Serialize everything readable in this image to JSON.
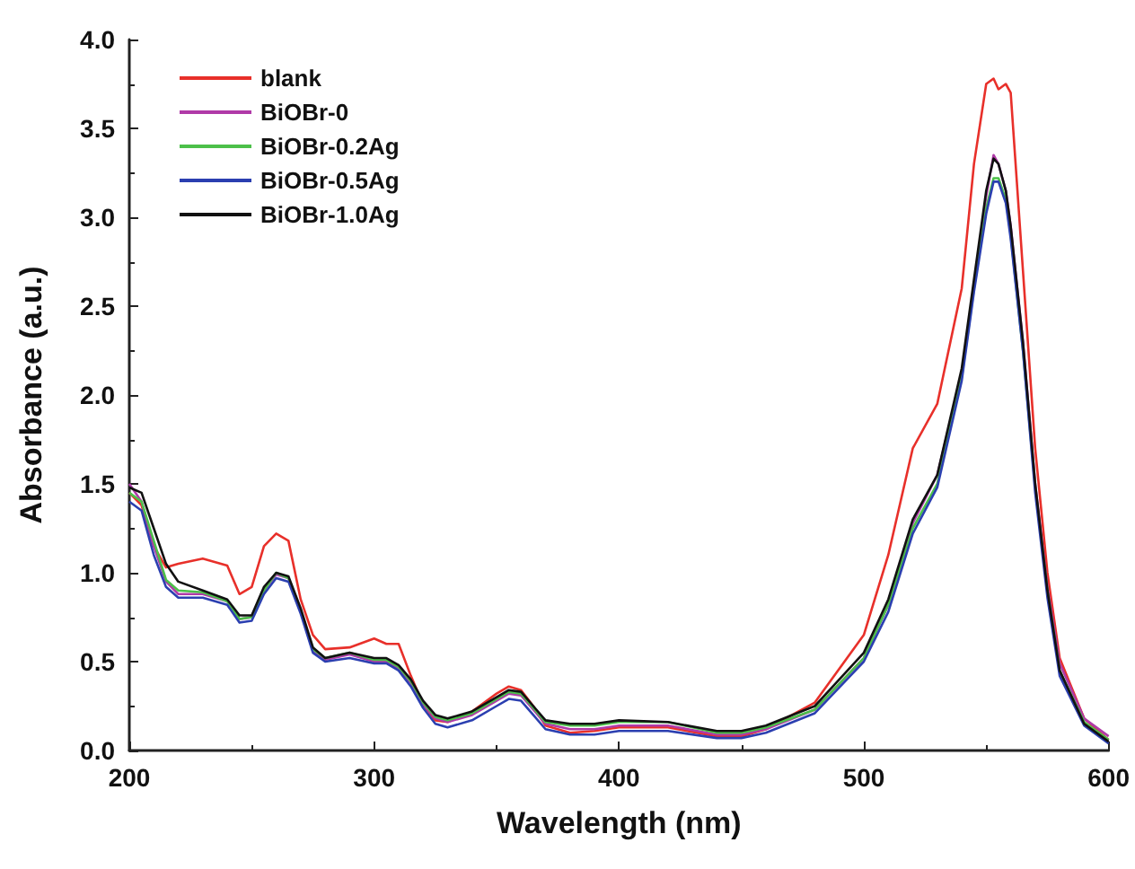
{
  "chart_data": {
    "type": "line",
    "xlabel": "Wavelength (nm)",
    "ylabel": "Absorbance (a.u.)",
    "x": [
      200,
      205,
      210,
      215,
      220,
      230,
      240,
      245,
      250,
      255,
      260,
      265,
      270,
      275,
      280,
      290,
      300,
      305,
      310,
      315,
      320,
      325,
      330,
      340,
      350,
      355,
      360,
      365,
      370,
      380,
      390,
      400,
      420,
      440,
      450,
      460,
      480,
      500,
      510,
      520,
      530,
      540,
      545,
      550,
      553,
      555,
      558,
      560,
      565,
      570,
      575,
      580,
      590,
      600
    ],
    "xlim": [
      200,
      600
    ],
    "xticks": [
      200,
      300,
      400,
      500,
      600
    ],
    "ylim": [
      0,
      4
    ],
    "yticks": [
      {
        "value": 0,
        "label": "0.0"
      },
      0.5,
      {
        "value": 1,
        "label": "1.0"
      },
      1.5,
      {
        "value": 2,
        "label": "2.0"
      },
      2.5,
      {
        "value": 3,
        "label": "3.0"
      },
      3.5,
      {
        "value": 4,
        "label": "4.0"
      }
    ],
    "legend": "top left",
    "grid": false,
    "line_style": "solid",
    "marker": "none",
    "series": [
      {
        "name": "blank",
        "color": "#e8302a",
        "values": [
          1.45,
          1.38,
          1.15,
          1.03,
          1.05,
          1.08,
          1.04,
          0.88,
          0.92,
          1.15,
          1.22,
          1.18,
          0.85,
          0.65,
          0.57,
          0.58,
          0.63,
          0.6,
          0.6,
          0.42,
          0.26,
          0.17,
          0.16,
          0.22,
          0.32,
          0.36,
          0.34,
          0.25,
          0.14,
          0.1,
          0.11,
          0.13,
          0.13,
          0.08,
          0.08,
          0.12,
          0.27,
          0.65,
          1.1,
          1.7,
          1.95,
          2.6,
          3.3,
          3.75,
          3.78,
          3.72,
          3.75,
          3.7,
          2.7,
          1.7,
          1.0,
          0.52,
          0.18,
          0.06
        ]
      },
      {
        "name": "BiOBr-0",
        "color": "#b03aa8",
        "values": [
          1.5,
          1.4,
          1.15,
          0.95,
          0.88,
          0.88,
          0.84,
          0.74,
          0.75,
          0.9,
          0.99,
          0.97,
          0.78,
          0.56,
          0.51,
          0.54,
          0.5,
          0.5,
          0.46,
          0.38,
          0.26,
          0.18,
          0.16,
          0.2,
          0.28,
          0.32,
          0.31,
          0.23,
          0.15,
          0.12,
          0.12,
          0.14,
          0.14,
          0.09,
          0.09,
          0.12,
          0.23,
          0.52,
          0.82,
          1.28,
          1.55,
          2.12,
          2.62,
          3.12,
          3.35,
          3.3,
          3.15,
          2.95,
          2.3,
          1.5,
          0.92,
          0.49,
          0.18,
          0.08
        ]
      },
      {
        "name": "BiOBr-0.2Ag",
        "color": "#4cc04a",
        "values": [
          1.45,
          1.4,
          1.18,
          0.96,
          0.9,
          0.89,
          0.84,
          0.74,
          0.75,
          0.9,
          1.0,
          0.97,
          0.79,
          0.57,
          0.52,
          0.55,
          0.51,
          0.51,
          0.47,
          0.39,
          0.27,
          0.19,
          0.17,
          0.21,
          0.29,
          0.33,
          0.32,
          0.24,
          0.16,
          0.14,
          0.14,
          0.16,
          0.16,
          0.1,
          0.1,
          0.13,
          0.23,
          0.52,
          0.82,
          1.25,
          1.5,
          2.1,
          2.6,
          3.05,
          3.22,
          3.22,
          3.1,
          2.9,
          2.25,
          1.48,
          0.9,
          0.45,
          0.16,
          0.06
        ]
      },
      {
        "name": "BiOBr-0.5Ag",
        "color": "#2b3fb0",
        "values": [
          1.4,
          1.35,
          1.1,
          0.92,
          0.86,
          0.86,
          0.82,
          0.72,
          0.73,
          0.88,
          0.97,
          0.95,
          0.77,
          0.55,
          0.5,
          0.52,
          0.49,
          0.49,
          0.45,
          0.36,
          0.24,
          0.15,
          0.13,
          0.17,
          0.25,
          0.29,
          0.28,
          0.2,
          0.12,
          0.09,
          0.09,
          0.11,
          0.11,
          0.07,
          0.07,
          0.1,
          0.21,
          0.5,
          0.78,
          1.22,
          1.48,
          2.08,
          2.58,
          3.02,
          3.2,
          3.2,
          3.08,
          2.88,
          2.25,
          1.45,
          0.86,
          0.42,
          0.14,
          0.04
        ]
      },
      {
        "name": "BiOBr-1.0Ag",
        "color": "#111111",
        "values": [
          1.48,
          1.45,
          1.25,
          1.05,
          0.95,
          0.9,
          0.85,
          0.76,
          0.76,
          0.92,
          1.0,
          0.98,
          0.8,
          0.58,
          0.52,
          0.55,
          0.52,
          0.52,
          0.48,
          0.4,
          0.28,
          0.2,
          0.18,
          0.22,
          0.3,
          0.34,
          0.33,
          0.25,
          0.17,
          0.15,
          0.15,
          0.17,
          0.16,
          0.11,
          0.11,
          0.14,
          0.25,
          0.55,
          0.85,
          1.3,
          1.55,
          2.15,
          2.65,
          3.15,
          3.33,
          3.3,
          3.15,
          2.95,
          2.3,
          1.5,
          0.9,
          0.45,
          0.15,
          0.05
        ]
      }
    ]
  }
}
